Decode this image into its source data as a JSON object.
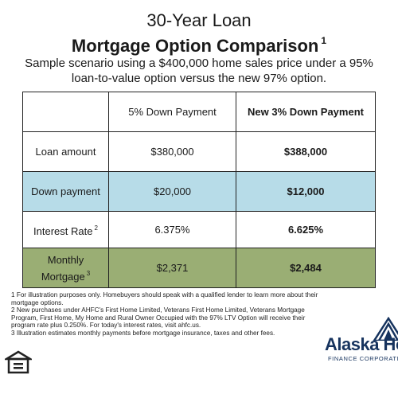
{
  "header": {
    "title_line1": "30-Year Loan",
    "title_line2": "Mortgage Option Comparison",
    "title_footnote": "1",
    "subtitle": "Sample scenario using a $400,000 home sales price under a 95% loan-to-value option versus the new 97% option."
  },
  "table": {
    "columns": [
      "",
      "5% Down Payment",
      "New 3% Down Payment"
    ],
    "rows": [
      {
        "label": "Loan amount",
        "sup": "",
        "five": "$380,000",
        "three": "$388,000"
      },
      {
        "label": "Down payment",
        "sup": "",
        "five": "$20,000",
        "three": "$12,000"
      },
      {
        "label": "Interest Rate",
        "sup": "2",
        "five": "6.375%",
        "three": "6.625%"
      },
      {
        "label": "Monthly Mortgage",
        "sup": "3",
        "five": "$2,371",
        "three": "$2,484"
      }
    ],
    "colors": {
      "down_payment_row": "#b7dce8",
      "monthly_row": "#9aae74"
    }
  },
  "footnotes": [
    "1 For illustration purposes only. Homebuyers should speak with a qualified lender to learn more about their mortgage options.",
    "2 New purchases under AHFC's First Home Limited, Veterans First Home Limited, Veterans Mortgage Program, First Home, My Home and Rural Owner Occupied with the 97% LTV Option will receive their program rate plus 0.250%. For today's interest rates, visit ahfc.us.",
    "3 Illustration estimates monthly payments before mortgage insurance, taxes and other fees."
  ],
  "logos": {
    "equal_housing_icon": "equal-housing-opportunity-icon",
    "brand_name": "Alaska Housing",
    "brand_sub": "FINANCE CORPORATION",
    "brand_color": "#16335e"
  }
}
